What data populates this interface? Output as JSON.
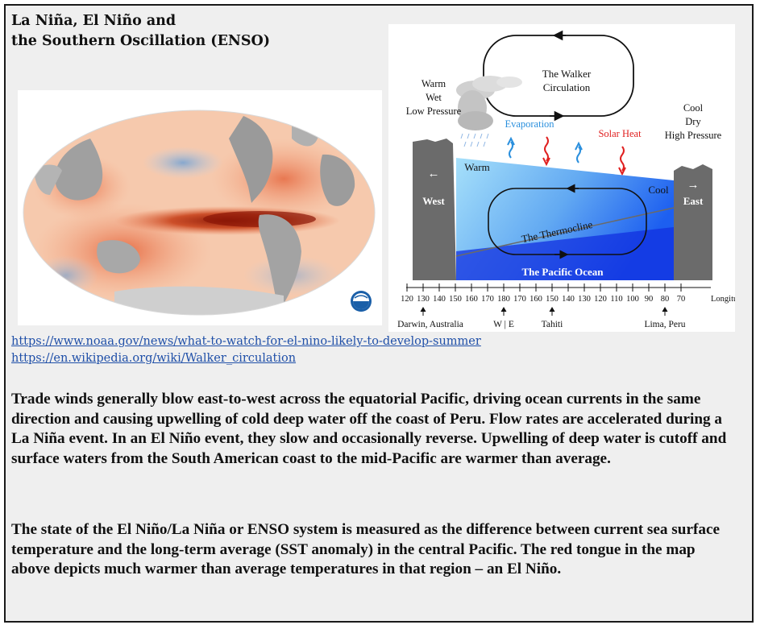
{
  "title": {
    "line1": "La Niña, El Niño and",
    "line2": "the Southern Oscillation (ENSO)"
  },
  "noaa_logo_text": "NOAA",
  "diagram": {
    "walker_line1": "The Walker",
    "walker_line2": "Circulation",
    "left_climate": [
      "Warm",
      "Wet",
      "Low Pressure"
    ],
    "right_climate": [
      "Cool",
      "Dry",
      "High Pressure"
    ],
    "evaporation": "Evaporation",
    "solar_heat": "Solar Heat",
    "warm": "Warm",
    "cool": "Cool",
    "west": "West",
    "east": "East",
    "west_arrow": "←",
    "east_arrow": "→",
    "thermocline": "The Thermocline",
    "ocean": "The Pacific Ocean",
    "ticks": [
      "120",
      "130",
      "140",
      "150",
      "160",
      "170",
      "180",
      "170",
      "160",
      "150",
      "140",
      "130",
      "120",
      "110",
      "100",
      "90",
      "80",
      "70"
    ],
    "longitude_label": "Longitude",
    "places": {
      "darwin": "Darwin, Australia",
      "dateline": "W | E",
      "tahiti": "Tahiti",
      "lima": "Lima, Peru"
    },
    "colors": {
      "warm_water": "#9fdcf8",
      "cool_water": "#1c5cf0",
      "deep_water": "#0a1fd0",
      "land": "#6b6b6b",
      "evaporation": "#2a8fdd",
      "solar_heat": "#e02020"
    }
  },
  "links": [
    "https://www.noaa.gov/news/what-to-watch-for-el-nino-likely-to-develop-summer",
    "https://en.wikipedia.org/wiki/Walker_circulation"
  ],
  "paragraphs": [
    "Trade winds generally blow east-to-west across the equatorial Pacific, driving ocean currents in the same direction and causing upwelling of cold deep water off the coast of Peru.  Flow rates are accelerated during a La Niña event.  In an El Niño event, they slow and occasionally reverse.  Upwelling of deep water is cutoff and surface waters from the South American coast to the mid-Pacific are warmer than average.",
    "The state of the El Niño/La Niña or ENSO system is measured as the difference between current sea surface temperature and the long-term average (SST anomaly) in the central Pacific.  The red tongue in the map above depicts much warmer than average temperatures in that region – an El Niño."
  ]
}
